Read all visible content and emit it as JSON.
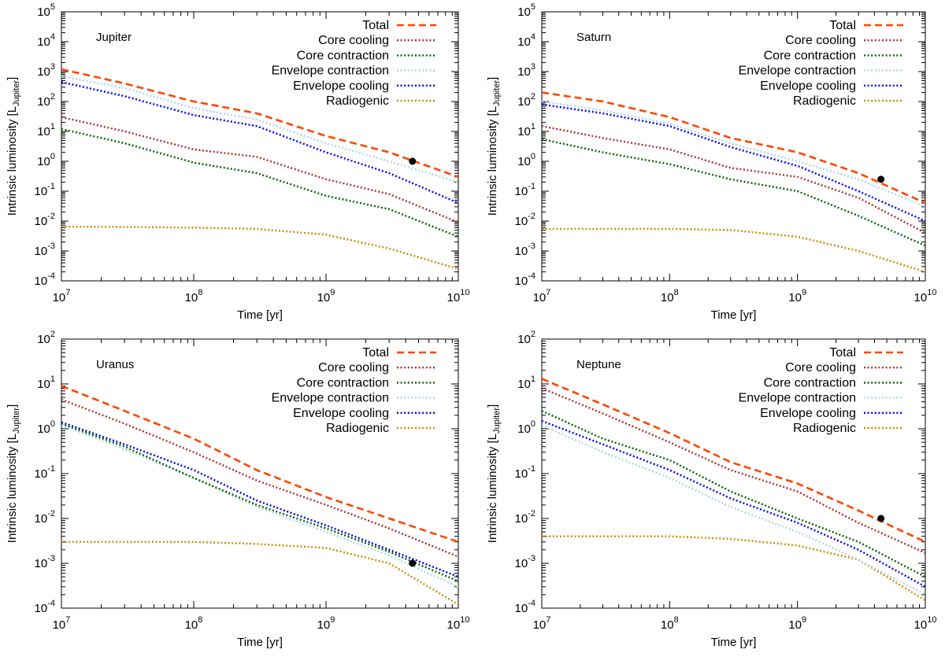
{
  "chart_data": [
    {
      "type": "line",
      "title": "Jupiter",
      "xlabel": "Time [yr]",
      "ylabel": "Intrinsic luminosity [L",
      "ylabel_sub": "Jupiter",
      "ylabel_close": "]",
      "xscale": "log",
      "yscale": "log",
      "xlim": [
        10000000.0,
        10000000000.0
      ],
      "ylim": [
        0.0001,
        100000.0
      ],
      "legend_position": "top-right",
      "x_ticks": [
        {
          "base": "10",
          "exp": "7"
        },
        {
          "base": "10",
          "exp": "8"
        },
        {
          "base": "10",
          "exp": "9"
        },
        {
          "base": "10",
          "exp": "10"
        }
      ],
      "y_ticks": [
        {
          "base": "10",
          "exp": "-4"
        },
        {
          "base": "10",
          "exp": "-3"
        },
        {
          "base": "10",
          "exp": "-2"
        },
        {
          "base": "10",
          "exp": "-1"
        },
        {
          "base": "10",
          "exp": "0"
        },
        {
          "base": "10",
          "exp": "1"
        },
        {
          "base": "10",
          "exp": "2"
        },
        {
          "base": "10",
          "exp": "3"
        },
        {
          "base": "10",
          "exp": "4"
        },
        {
          "base": "10",
          "exp": "5"
        }
      ],
      "x": [
        10000000.0,
        30000000.0,
        100000000.0,
        300000000.0,
        1000000000.0,
        3000000000.0,
        10000000000.0
      ],
      "series": [
        {
          "name": "Total",
          "color": "#ff4500",
          "style": "dashed",
          "values": [
            1200,
            400,
            100,
            40,
            7,
            2,
            0.3
          ]
        },
        {
          "name": "Core cooling",
          "color": "#b03030",
          "style": "dotted",
          "values": [
            30,
            10,
            2.5,
            1.4,
            0.25,
            0.08,
            0.009
          ]
        },
        {
          "name": "Core contraction",
          "color": "#006400",
          "style": "dotted",
          "values": [
            12,
            4,
            0.9,
            0.4,
            0.07,
            0.025,
            0.003
          ]
        },
        {
          "name": "Envelope contraction",
          "color": "#add8e6",
          "style": "dotted",
          "values": [
            700,
            280,
            60,
            25,
            4,
            1,
            0.2
          ]
        },
        {
          "name": "Envelope cooling",
          "color": "#0000ff",
          "style": "dotted",
          "values": [
            450,
            150,
            35,
            15,
            2,
            0.4,
            0.04
          ]
        },
        {
          "name": "Radiogenic",
          "color": "#cd8c00",
          "style": "dotted",
          "values": [
            0.0065,
            0.0064,
            0.006,
            0.0055,
            0.0035,
            0.0012,
            0.00025
          ]
        }
      ],
      "observed": {
        "x": 4500000000.0,
        "y": 1.0
      }
    },
    {
      "type": "line",
      "title": "Saturn",
      "xlabel": "Time [yr]",
      "ylabel": "Intrinsic luminosity [L",
      "ylabel_sub": "Jupiter",
      "ylabel_close": "]",
      "xscale": "log",
      "yscale": "log",
      "xlim": [
        10000000.0,
        10000000000.0
      ],
      "ylim": [
        0.0001,
        100000.0
      ],
      "legend_position": "top-right",
      "x_ticks": [
        {
          "base": "10",
          "exp": "7"
        },
        {
          "base": "10",
          "exp": "8"
        },
        {
          "base": "10",
          "exp": "9"
        },
        {
          "base": "10",
          "exp": "10"
        }
      ],
      "y_ticks": [
        {
          "base": "10",
          "exp": "-4"
        },
        {
          "base": "10",
          "exp": "-3"
        },
        {
          "base": "10",
          "exp": "-2"
        },
        {
          "base": "10",
          "exp": "-1"
        },
        {
          "base": "10",
          "exp": "0"
        },
        {
          "base": "10",
          "exp": "1"
        },
        {
          "base": "10",
          "exp": "2"
        },
        {
          "base": "10",
          "exp": "3"
        },
        {
          "base": "10",
          "exp": "4"
        },
        {
          "base": "10",
          "exp": "5"
        }
      ],
      "x": [
        10000000.0,
        30000000.0,
        100000000.0,
        300000000.0,
        1000000000.0,
        3000000000.0,
        10000000000.0
      ],
      "series": [
        {
          "name": "Total",
          "color": "#ff4500",
          "style": "dashed",
          "values": [
            200,
            100,
            30,
            6,
            2,
            0.4,
            0.04
          ]
        },
        {
          "name": "Core cooling",
          "color": "#b03030",
          "style": "dotted",
          "values": [
            15,
            6,
            2.5,
            0.6,
            0.3,
            0.06,
            0.004
          ]
        },
        {
          "name": "Core contraction",
          "color": "#006400",
          "style": "dotted",
          "values": [
            5.5,
            2,
            0.8,
            0.25,
            0.1,
            0.015,
            0.0015
          ]
        },
        {
          "name": "Envelope contraction",
          "color": "#add8e6",
          "style": "dotted",
          "values": [
            100,
            50,
            18,
            4,
            1,
            0.25,
            0.03
          ]
        },
        {
          "name": "Envelope cooling",
          "color": "#0000ff",
          "style": "dotted",
          "values": [
            80,
            40,
            15,
            3,
            0.7,
            0.1,
            0.01
          ]
        },
        {
          "name": "Radiogenic",
          "color": "#cd8c00",
          "style": "dotted",
          "values": [
            0.0055,
            0.0055,
            0.0055,
            0.005,
            0.003,
            0.001,
            0.0002
          ]
        }
      ],
      "observed": {
        "x": 4500000000.0,
        "y": 0.25
      }
    },
    {
      "type": "line",
      "title": "Uranus",
      "xlabel": "Time [yr]",
      "ylabel": "Intrinsic luminosity [L",
      "ylabel_sub": "Jupiter",
      "ylabel_close": "]",
      "xscale": "log",
      "yscale": "log",
      "xlim": [
        10000000.0,
        10000000000.0
      ],
      "ylim": [
        0.0001,
        100.0
      ],
      "legend_position": "top-right",
      "x_ticks": [
        {
          "base": "10",
          "exp": "7"
        },
        {
          "base": "10",
          "exp": "8"
        },
        {
          "base": "10",
          "exp": "9"
        },
        {
          "base": "10",
          "exp": "10"
        }
      ],
      "y_ticks": [
        {
          "base": "10",
          "exp": "-4"
        },
        {
          "base": "10",
          "exp": "-3"
        },
        {
          "base": "10",
          "exp": "-2"
        },
        {
          "base": "10",
          "exp": "-1"
        },
        {
          "base": "10",
          "exp": "0"
        },
        {
          "base": "10",
          "exp": "1"
        },
        {
          "base": "10",
          "exp": "2"
        }
      ],
      "x": [
        10000000.0,
        30000000.0,
        100000000.0,
        300000000.0,
        1000000000.0,
        3000000000.0,
        10000000000.0
      ],
      "series": [
        {
          "name": "Total",
          "color": "#ff4500",
          "style": "dashed",
          "values": [
            9,
            2.5,
            0.6,
            0.12,
            0.03,
            0.01,
            0.003
          ]
        },
        {
          "name": "Core cooling",
          "color": "#b03030",
          "style": "dotted",
          "values": [
            4.5,
            1.3,
            0.3,
            0.07,
            0.02,
            0.006,
            0.0014
          ]
        },
        {
          "name": "Core contraction",
          "color": "#006400",
          "style": "dotted",
          "values": [
            1.3,
            0.4,
            0.08,
            0.02,
            0.006,
            0.0018,
            0.0004
          ]
        },
        {
          "name": "Envelope contraction",
          "color": "#add8e6",
          "style": "dotted",
          "values": [
            1.2,
            0.35,
            0.08,
            0.018,
            0.005,
            0.0015,
            0.0003
          ]
        },
        {
          "name": "Envelope cooling",
          "color": "#0000ff",
          "style": "dotted",
          "values": [
            1.4,
            0.45,
            0.12,
            0.025,
            0.007,
            0.002,
            0.0005
          ]
        },
        {
          "name": "Radiogenic",
          "color": "#cd8c00",
          "style": "dotted",
          "values": [
            0.003,
            0.003,
            0.003,
            0.0027,
            0.0022,
            0.001,
            0.00012
          ]
        }
      ],
      "observed": {
        "x": 4500000000.0,
        "y": 0.001
      }
    },
    {
      "type": "line",
      "title": "Neptune",
      "xlabel": "Time [yr]",
      "ylabel": "Intrinsic luminosity [L",
      "ylabel_sub": "Jupiter",
      "ylabel_close": "]",
      "xscale": "log",
      "yscale": "log",
      "xlim": [
        10000000.0,
        10000000000.0
      ],
      "ylim": [
        0.0001,
        100.0
      ],
      "legend_position": "top-right",
      "x_ticks": [
        {
          "base": "10",
          "exp": "7"
        },
        {
          "base": "10",
          "exp": "8"
        },
        {
          "base": "10",
          "exp": "9"
        },
        {
          "base": "10",
          "exp": "10"
        }
      ],
      "y_ticks": [
        {
          "base": "10",
          "exp": "-4"
        },
        {
          "base": "10",
          "exp": "-3"
        },
        {
          "base": "10",
          "exp": "-2"
        },
        {
          "base": "10",
          "exp": "-1"
        },
        {
          "base": "10",
          "exp": "0"
        },
        {
          "base": "10",
          "exp": "1"
        },
        {
          "base": "10",
          "exp": "2"
        }
      ],
      "x": [
        10000000.0,
        30000000.0,
        100000000.0,
        300000000.0,
        1000000000.0,
        3000000000.0,
        10000000000.0
      ],
      "series": [
        {
          "name": "Total",
          "color": "#ff4500",
          "style": "dashed",
          "values": [
            13,
            3.5,
            0.8,
            0.18,
            0.06,
            0.015,
            0.003
          ]
        },
        {
          "name": "Core cooling",
          "color": "#b03030",
          "style": "dotted",
          "values": [
            8,
            2.2,
            0.5,
            0.12,
            0.04,
            0.008,
            0.0017
          ]
        },
        {
          "name": "Core contraction",
          "color": "#006400",
          "style": "dotted",
          "values": [
            2.5,
            0.6,
            0.2,
            0.04,
            0.01,
            0.003,
            0.0005
          ]
        },
        {
          "name": "Envelope contraction",
          "color": "#add8e6",
          "style": "dotted",
          "values": [
            1.2,
            0.3,
            0.08,
            0.018,
            0.005,
            0.0012,
            0.0002
          ]
        },
        {
          "name": "Envelope cooling",
          "color": "#0000ff",
          "style": "dotted",
          "values": [
            1.5,
            0.45,
            0.12,
            0.028,
            0.008,
            0.002,
            0.0003
          ]
        },
        {
          "name": "Radiogenic",
          "color": "#cd8c00",
          "style": "dotted",
          "values": [
            0.004,
            0.004,
            0.004,
            0.0035,
            0.0025,
            0.0012,
            0.00015
          ]
        }
      ],
      "observed": {
        "x": 4500000000.0,
        "y": 0.01
      }
    }
  ]
}
